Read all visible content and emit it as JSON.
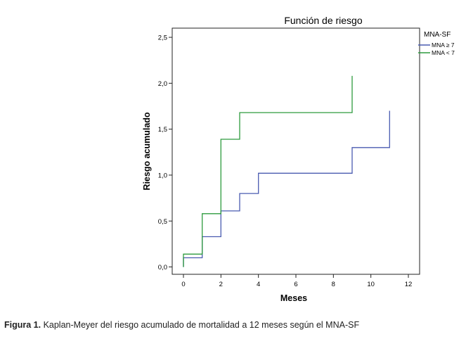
{
  "chart_data": {
    "type": "line",
    "step": true,
    "title": "Función de riesgo",
    "xlabel": "Meses",
    "ylabel": "Riesgo acumulado",
    "xlim": [
      -0.6,
      12.6
    ],
    "ylim": [
      -0.08,
      2.6
    ],
    "xticks": [
      0,
      2,
      4,
      6,
      8,
      10,
      12
    ],
    "xtick_labels": [
      "0",
      "2",
      "4",
      "6",
      "8",
      "10",
      "12"
    ],
    "yticks": [
      0.0,
      0.5,
      1.0,
      1.5,
      2.0,
      2.5
    ],
    "ytick_labels": [
      "0,0",
      "0,5",
      "1,0",
      "1,5",
      "2,0",
      "2,5"
    ],
    "grid": false,
    "legend_title": "MNA-SF",
    "legend_position": "right",
    "series": [
      {
        "name": "MNA ≥ 7",
        "color": "#4a5bb0",
        "x": [
          0,
          0,
          1,
          1,
          2,
          2,
          3,
          3,
          4,
          4,
          9,
          9,
          11,
          11
        ],
        "y": [
          0,
          0.1,
          0.1,
          0.33,
          0.33,
          0.61,
          0.61,
          0.8,
          0.8,
          1.02,
          1.02,
          1.3,
          1.3,
          1.7
        ]
      },
      {
        "name": "MNA < 7",
        "color": "#2e9b3e",
        "x": [
          0,
          0,
          1,
          1,
          2,
          2,
          3,
          3,
          9,
          9
        ],
        "y": [
          0,
          0.14,
          0.14,
          0.58,
          0.58,
          1.39,
          1.39,
          1.68,
          1.68,
          2.08
        ]
      }
    ]
  },
  "caption": {
    "label": "Figura 1.",
    "text": " Kaplan-Meyer del riesgo acumulado de mortalidad a 12 meses según el MNA-SF"
  }
}
